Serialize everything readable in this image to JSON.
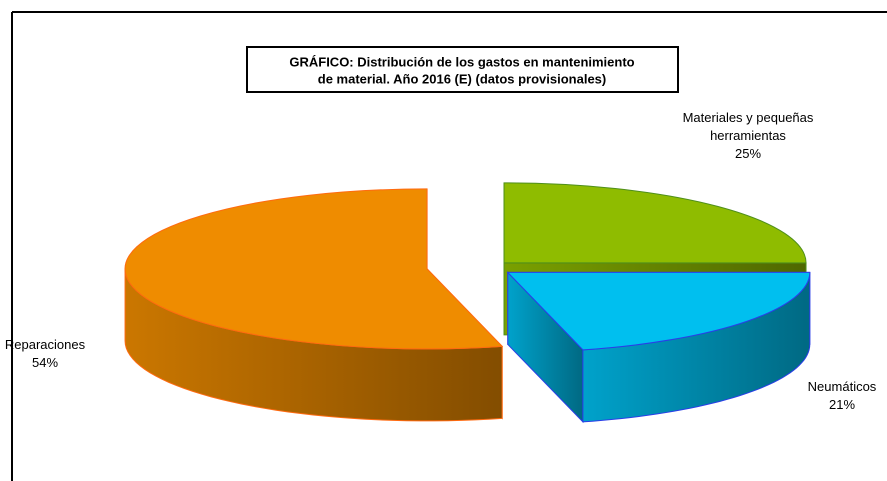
{
  "chart_data": {
    "type": "pie3d",
    "title": [
      "GRÁFICO: Distribución de los gastos en mantenimiento",
      "de material. Año 2016 (E) (datos provisionales)"
    ],
    "categories": [
      "Materiales y pequeñas herramientas",
      "Neumáticos",
      "Reparaciones"
    ],
    "values": [
      25,
      21,
      54
    ],
    "value_labels": [
      "25%",
      "21%",
      "54%"
    ],
    "colors": [
      "#8fbc00",
      "#00bfef",
      "#ef8c00"
    ],
    "edge_colors": [
      "#4f8f1a",
      "#2a3ee8",
      "#ff6a10"
    ]
  }
}
